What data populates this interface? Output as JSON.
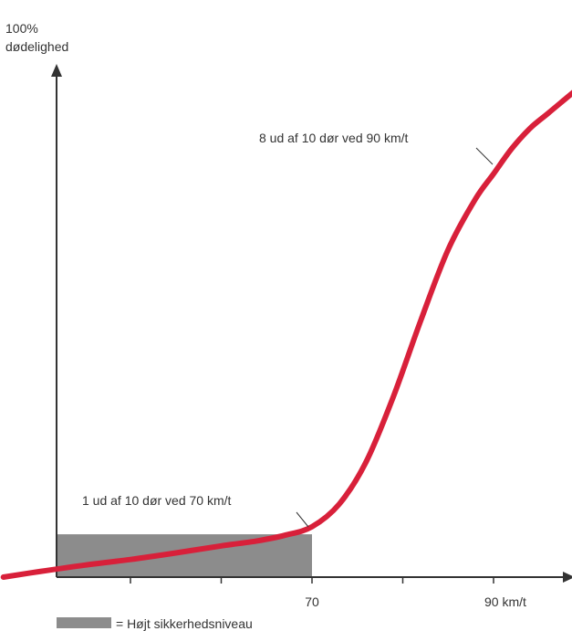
{
  "chart_data": {
    "type": "line",
    "title": "",
    "ylabel_line1": "100%",
    "ylabel_line2": "dødelighed",
    "xlabel": "",
    "x_ticks": [
      {
        "value": 50,
        "label": ""
      },
      {
        "value": 60,
        "label": ""
      },
      {
        "value": 70,
        "label": "70"
      },
      {
        "value": 80,
        "label": ""
      },
      {
        "value": 90,
        "label": "90 km/t"
      }
    ],
    "xlim": [
      36,
      100
    ],
    "ylim": [
      0,
      100
    ],
    "series": [
      {
        "name": "",
        "color": "#d8203a",
        "x": [
          36,
          40,
          45,
          50,
          55,
          60,
          64,
          67,
          70,
          73,
          76,
          79,
          82,
          85,
          88,
          90,
          92,
          94,
          96,
          98,
          100
        ],
        "y": [
          0,
          1.1,
          2.4,
          3.5,
          4.8,
          6.2,
          7.2,
          8.3,
          10,
          14.5,
          23,
          36,
          51,
          65,
          75,
          80,
          85,
          89,
          92,
          95,
          98
        ]
      }
    ],
    "highlight_region": {
      "x_range": [
        36,
        70
      ],
      "y_range": [
        0,
        8.5
      ],
      "color": "#8c8c8c",
      "legend_label": "= Højt sikkerhedsniveau"
    },
    "annotations": [
      {
        "text": "8 ud af 10 dør ved 90 km/t",
        "x": 90,
        "y": 80
      },
      {
        "text": "1 ud af 10 dør ved 70 km/t",
        "x": 70,
        "y": 10
      }
    ]
  }
}
